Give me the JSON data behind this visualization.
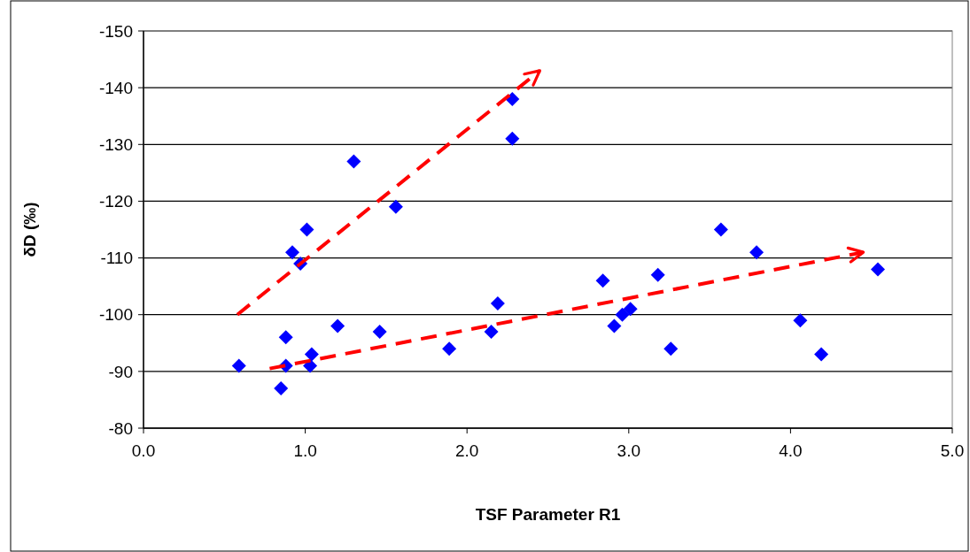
{
  "chart_data": {
    "type": "scatter",
    "xlabel": "TSF Parameter R1",
    "ylabel": "δD (‰)",
    "x": [
      0.59,
      0.85,
      0.88,
      0.88,
      0.92,
      0.97,
      1.01,
      1.04,
      1.03,
      1.2,
      1.3,
      1.46,
      1.56,
      1.89,
      2.15,
      2.19,
      2.28,
      2.28,
      2.84,
      2.91,
      2.96,
      3.01,
      3.18,
      3.26,
      3.57,
      3.79,
      4.06,
      4.19,
      4.54
    ],
    "series": [
      {
        "color": "#0000ff",
        "values": [
          -91,
          -87,
          -96,
          -91,
          -111,
          -109,
          -115,
          -93,
          -91,
          -98,
          -127,
          -97,
          -119,
          -94,
          -97,
          -102,
          -138,
          -131,
          -106,
          -98,
          -100,
          -101,
          -107,
          -94,
          -115,
          -111,
          -99,
          -93,
          -108
        ]
      },
      {
        "type": "line",
        "color": "#ff0000",
        "line_style": "dashed",
        "marker": "none",
        "x": [
          0.58,
          2.45
        ],
        "values": [
          -100,
          -143
        ]
      },
      {
        "type": "line",
        "color": "#ff0000",
        "line_style": "dashed",
        "marker": "none",
        "x": [
          0.78,
          4.45
        ],
        "values": [
          -90.5,
          -111
        ]
      }
    ],
    "xlim": [
      0,
      5
    ],
    "xticks": [
      {
        "value": 0,
        "label": "0.0"
      },
      {
        "value": 1,
        "label": "1.0"
      },
      {
        "value": 2,
        "label": "2.0"
      },
      {
        "value": 3,
        "label": "3.0"
      },
      {
        "value": 4,
        "label": "4.0"
      },
      {
        "value": 5,
        "label": "5.0"
      }
    ],
    "ylim": [
      -80,
      -150
    ],
    "yticks": [
      -150,
      -140,
      -130,
      -120,
      -110,
      -100,
      -90,
      -80
    ],
    "grid": "y",
    "marker": "diamond"
  }
}
